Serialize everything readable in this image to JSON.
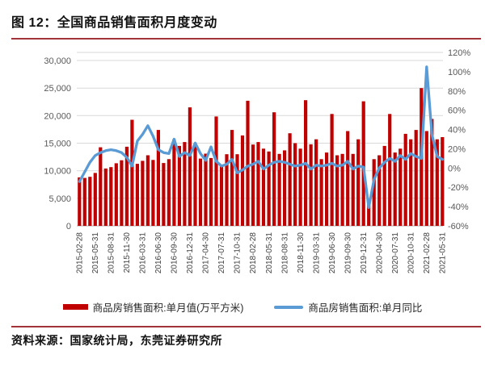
{
  "figure": {
    "title": "图 12：全国商品销售面积月度变动",
    "source": "资料来源：国家统计局，东莞证券研究所"
  },
  "colors": {
    "bar": "#c00000",
    "line": "#5b9bd5",
    "grid": "#d9d9d9",
    "axis_line": "#bfbfbf",
    "tick_text": "#595959",
    "x_tick_text": "#404040",
    "rule": "#a23338"
  },
  "chart_data": {
    "type": "bar",
    "subtype": "bar+line combo, dual axis",
    "grid": true,
    "legend_position": "bottom",
    "categories": [
      "2015-02",
      "2015-03",
      "2015-04",
      "2015-05",
      "2015-06",
      "2015-07",
      "2015-08",
      "2015-09",
      "2015-10",
      "2015-11",
      "2015-12",
      "2016-02",
      "2016-03",
      "2016-04",
      "2016-05",
      "2016-06",
      "2016-07",
      "2016-08",
      "2016-09",
      "2016-10",
      "2016-11",
      "2016-12",
      "2017-02",
      "2017-03",
      "2017-04",
      "2017-05",
      "2017-06",
      "2017-07",
      "2017-08",
      "2017-09",
      "2017-10",
      "2017-11",
      "2017-12",
      "2018-02",
      "2018-03",
      "2018-04",
      "2018-05",
      "2018-06",
      "2018-07",
      "2018-08",
      "2018-09",
      "2018-10",
      "2018-11",
      "2018-12",
      "2019-02",
      "2019-03",
      "2019-04",
      "2019-05",
      "2019-06",
      "2019-07",
      "2019-08",
      "2019-09",
      "2019-10",
      "2019-11",
      "2019-12",
      "2020-02",
      "2020-03",
      "2020-04",
      "2020-05",
      "2020-06",
      "2020-07",
      "2020-08",
      "2020-09",
      "2020-10",
      "2020-11",
      "2020-12",
      "2021-02",
      "2021-03",
      "2021-04",
      "2021-05"
    ],
    "x_tick_labels": [
      "2015-02-28",
      "2015-05-31",
      "2015-08-31",
      "2015-11-30",
      "2016-03-31",
      "2016-06-30",
      "2016-09-30",
      "2016-12-31",
      "2017-04-30",
      "2017-07-31",
      "2017-10-31",
      "2018-02-28",
      "2018-05-31",
      "2018-08-31",
      "2018-11-30",
      "2019-03-31",
      "2019-06-30",
      "2019-09-30",
      "2019-12-31",
      "2020-04-30",
      "2020-07-31",
      "2020-10-31",
      "2021-02-28",
      "2021-05-31"
    ],
    "x_tick_every": 3,
    "series": [
      {
        "name": "商品房销售面积:单月值(万平方米)",
        "type": "bar",
        "axis": "left",
        "values": [
          8800,
          8700,
          8900,
          9600,
          14250,
          10400,
          10650,
          11350,
          11900,
          14350,
          19250,
          11250,
          11800,
          12800,
          11950,
          17400,
          11400,
          12100,
          15700,
          14500,
          15200,
          21500,
          15000,
          12200,
          13100,
          12300,
          19850,
          10900,
          13000,
          17400,
          13000,
          16400,
          22700,
          14750,
          15200,
          14000,
          13500,
          20600,
          13050,
          13700,
          16800,
          15000,
          14000,
          22800,
          14800,
          15700,
          12100,
          13300,
          20300,
          12800,
          13050,
          17200,
          13050,
          15700,
          22600,
          3900,
          12100,
          12800,
          14500,
          20300,
          13300,
          14000,
          16700,
          15700,
          17400,
          25000,
          17200,
          19400,
          15700,
          16100
        ]
      },
      {
        "name": "商品房销售面积:单月同比",
        "type": "line",
        "axis": "right",
        "values": [
          -14,
          -4,
          6,
          13,
          16,
          18,
          19,
          18,
          16,
          11,
          2,
          28,
          35,
          44,
          33,
          19,
          16,
          15,
          30,
          12,
          16,
          13,
          26,
          15,
          8,
          22,
          7,
          2,
          4,
          9,
          -5,
          -2,
          2,
          4,
          7,
          -1,
          3,
          6,
          7,
          6,
          4,
          2,
          3,
          5,
          -1,
          3,
          2,
          3,
          5,
          2,
          3,
          7,
          -1,
          2,
          1,
          -41,
          -12,
          0,
          6,
          10,
          7,
          13,
          9,
          15,
          12,
          10,
          105,
          35,
          12,
          9
        ]
      }
    ],
    "left_axis": {
      "min": 0,
      "max": 30000,
      "step": 5000,
      "tick_labels": [
        "0",
        "5,000",
        "10,000",
        "15,000",
        "20,000",
        "25,000",
        "30,000"
      ]
    },
    "right_axis": {
      "min": -60,
      "max": 120,
      "step": 20,
      "tick_labels": [
        "-60%",
        "-40%",
        "-20%",
        "0%",
        "20%",
        "40%",
        "60%",
        "80%",
        "100%",
        "120%"
      ]
    }
  }
}
